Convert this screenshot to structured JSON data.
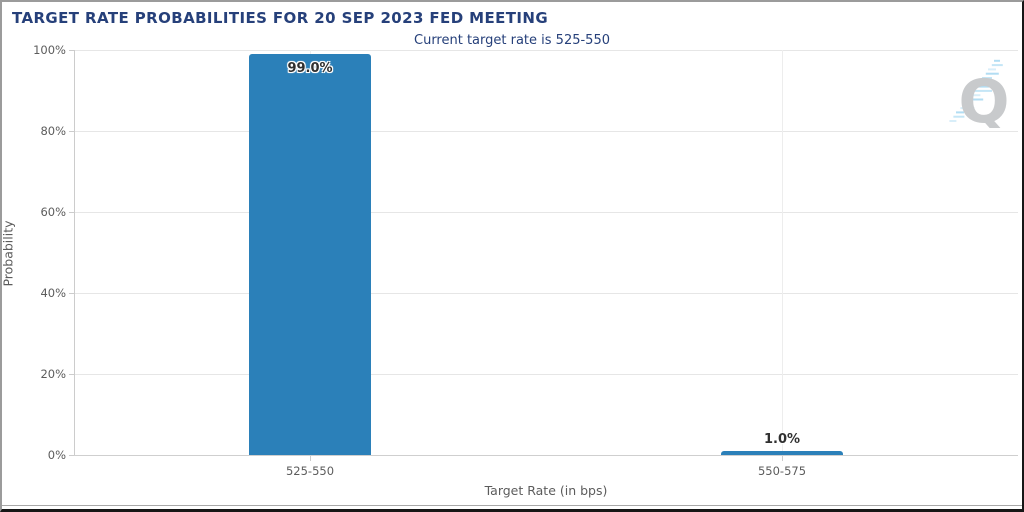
{
  "header": {
    "title": "TARGET RATE PROBABILITIES FOR 20 SEP 2023 FED MEETING",
    "subtitle": "Current target rate is 525-550"
  },
  "watermark": {
    "letter": "Q"
  },
  "chart_data": {
    "type": "bar",
    "title": "TARGET RATE PROBABILITIES FOR 20 SEP 2023 FED MEETING",
    "subtitle": "Current target rate is 525-550",
    "categories": [
      "525-550",
      "550-575"
    ],
    "values": [
      99.0,
      1.0
    ],
    "value_labels": [
      "99.0%",
      "1.0%"
    ],
    "xlabel": "Target Rate (in bps)",
    "ylabel": "Probability",
    "ylim": [
      0,
      100
    ],
    "ytick_step": 20,
    "ytick_labels": [
      "0%",
      "20%",
      "40%",
      "60%",
      "80%",
      "100%"
    ],
    "grid": true,
    "legend": "none",
    "bar_color": "#2b80b9",
    "colors": {
      "title": "#26407a",
      "axis_label": "#5c5c5c",
      "gridline": "#e6e6e6",
      "axis_line": "#cccccc",
      "logo_gray": "#c8cacc",
      "logo_blue": "#a9d9f2"
    }
  }
}
